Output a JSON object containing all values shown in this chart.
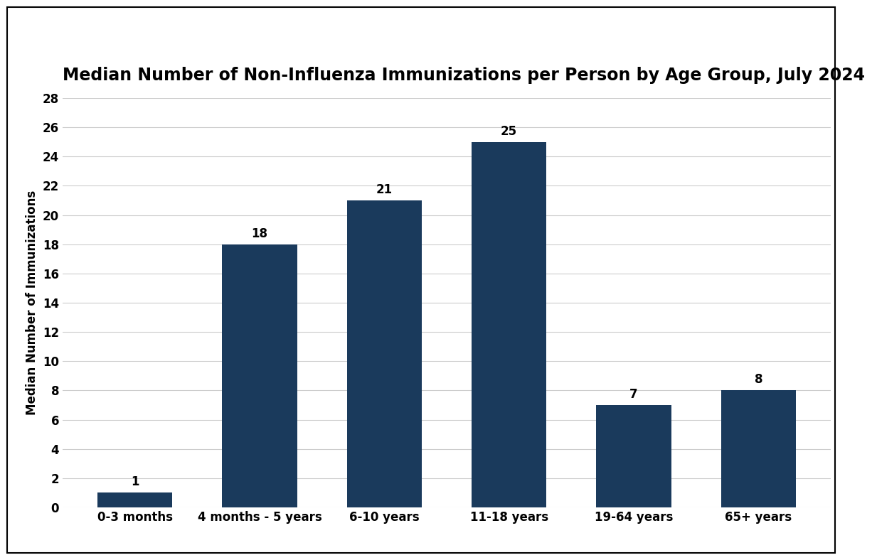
{
  "title": "Median Number of Non-Influenza Immunizations per Person by Age Group, July 2024",
  "categories": [
    "0-3 months",
    "4 months - 5 years",
    "6-10 years",
    "11-18 years",
    "19-64 years",
    "65+ years"
  ],
  "values": [
    1,
    18,
    21,
    25,
    7,
    8
  ],
  "bar_color": "#1a3a5c",
  "ylabel": "Median Number of Immunizations",
  "ylim": [
    0,
    28
  ],
  "yticks": [
    0,
    2,
    4,
    6,
    8,
    10,
    12,
    14,
    16,
    18,
    20,
    22,
    24,
    26,
    28
  ],
  "title_fontsize": 17,
  "axis_label_fontsize": 12,
  "tick_fontsize": 12,
  "value_label_fontsize": 12,
  "background_color": "#ffffff",
  "grid_color": "#cccccc",
  "border_color": "#000000"
}
